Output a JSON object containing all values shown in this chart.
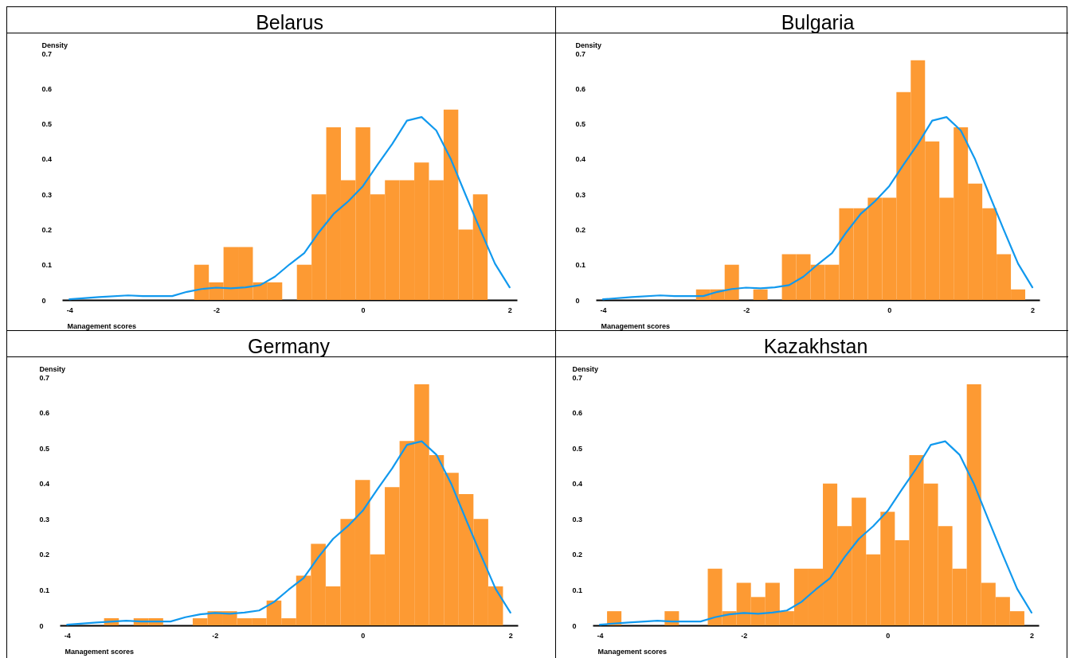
{
  "chart_data": [
    {
      "type": "histogram",
      "title": "Belarus",
      "xlabel": "Management scores",
      "ylabel": "Density",
      "xlim": [
        -4.1,
        2.1
      ],
      "xticks": [
        -4,
        -2,
        0,
        2
      ],
      "ylim": [
        0,
        0.7
      ],
      "yticks": [
        0,
        0.1,
        0.2,
        0.3,
        0.4,
        0.5,
        0.6,
        0.7
      ],
      "series": [
        {
          "color": "#fd9a33",
          "bins": [
            -2.3,
            -2.1,
            -1.9,
            -1.7,
            -1.5,
            -1.3,
            -1.1,
            -0.9,
            -0.7,
            -0.5,
            -0.3,
            -0.1,
            0.1,
            0.3,
            0.5,
            0.7,
            0.9,
            1.1,
            1.3,
            1.5,
            1.7
          ],
          "values": [
            0.1,
            0.05,
            0.15,
            0.15,
            0.05,
            0.05,
            0,
            0.1,
            0.3,
            0.49,
            0.34,
            0.49,
            0.3,
            0.34,
            0.34,
            0.39,
            0.34,
            0.54,
            0.2,
            0.3
          ]
        },
        {
          "type": "line",
          "color": "#1199ee",
          "x": [
            -4,
            -3.6,
            -3.2,
            -3,
            -2.6,
            -2.4,
            -2.2,
            -2,
            -1.8,
            -1.6,
            -1.4,
            -1.2,
            -1,
            -0.8,
            -0.6,
            -0.4,
            -0.2,
            0,
            0.2,
            0.4,
            0.6,
            0.8,
            1,
            1.2,
            1.4,
            1.6,
            1.8,
            2
          ],
          "values": [
            0.002,
            0.008,
            0.013,
            0.011,
            0.011,
            0.023,
            0.031,
            0.035,
            0.033,
            0.036,
            0.042,
            0.066,
            0.101,
            0.133,
            0.192,
            0.244,
            0.28,
            0.323,
            0.384,
            0.443,
            0.509,
            0.519,
            0.481,
            0.399,
            0.298,
            0.199,
            0.103,
            0.036
          ]
        }
      ]
    },
    {
      "type": "histogram",
      "title": "Bulgaria",
      "xlabel": "Management scores",
      "ylabel": "Density",
      "xlim": [
        -4.1,
        2.1
      ],
      "xticks": [
        -4,
        -2,
        0,
        2
      ],
      "ylim": [
        0,
        0.7
      ],
      "yticks": [
        0,
        0.1,
        0.2,
        0.3,
        0.4,
        0.5,
        0.6,
        0.7
      ],
      "series": [
        {
          "color": "#fd9a33",
          "bins": [
            -2.7,
            -2.5,
            -2.3,
            -2.1,
            -1.9,
            -1.7,
            -1.5,
            -1.3,
            -1.1,
            -0.9,
            -0.7,
            -0.5,
            -0.3,
            -0.1,
            0.1,
            0.3,
            0.5,
            0.7,
            0.9,
            1.1,
            1.3,
            1.5,
            1.7,
            1.9
          ],
          "values": [
            0.03,
            0.03,
            0.1,
            0,
            0.03,
            0,
            0.13,
            0.13,
            0.1,
            0.1,
            0.26,
            0.26,
            0.29,
            0.29,
            0.59,
            0.68,
            0.45,
            0.29,
            0.49,
            0.33,
            0.26,
            0.13,
            0.03
          ]
        },
        {
          "type": "line",
          "color": "#1199ee",
          "x": [
            -4,
            -3.6,
            -3.2,
            -3,
            -2.6,
            -2.4,
            -2.2,
            -2,
            -1.8,
            -1.6,
            -1.4,
            -1.2,
            -1,
            -0.8,
            -0.6,
            -0.4,
            -0.2,
            0,
            0.2,
            0.4,
            0.6,
            0.8,
            1,
            1.2,
            1.4,
            1.6,
            1.8,
            2
          ],
          "values": [
            0.002,
            0.008,
            0.013,
            0.011,
            0.011,
            0.023,
            0.031,
            0.035,
            0.033,
            0.036,
            0.042,
            0.066,
            0.101,
            0.133,
            0.192,
            0.244,
            0.28,
            0.323,
            0.384,
            0.443,
            0.509,
            0.519,
            0.481,
            0.399,
            0.298,
            0.199,
            0.103,
            0.036
          ]
        }
      ]
    },
    {
      "type": "histogram",
      "title": "Germany",
      "xlabel": "Management scores",
      "ylabel": "Density",
      "xlim": [
        -4.1,
        2.1
      ],
      "xticks": [
        -4,
        -2,
        0,
        2
      ],
      "ylim": [
        0,
        0.7
      ],
      "yticks": [
        0,
        0.1,
        0.2,
        0.3,
        0.4,
        0.5,
        0.6,
        0.7
      ],
      "series": [
        {
          "color": "#fd9a33",
          "bins": [
            -3.5,
            -3.3,
            -3.1,
            -2.9,
            -2.7,
            -2.5,
            -2.3,
            -2.1,
            -1.9,
            -1.7,
            -1.5,
            -1.3,
            -1.1,
            -0.9,
            -0.7,
            -0.5,
            -0.3,
            -0.1,
            0.1,
            0.3,
            0.5,
            0.7,
            0.9,
            1.1,
            1.3,
            1.5,
            1.7,
            1.9
          ],
          "values": [
            0.02,
            0,
            0.02,
            0.02,
            0,
            0,
            0.02,
            0.04,
            0.04,
            0.02,
            0.02,
            0.07,
            0.02,
            0.14,
            0.23,
            0.11,
            0.3,
            0.41,
            0.2,
            0.39,
            0.52,
            0.68,
            0.48,
            0.43,
            0.37,
            0.3,
            0.11
          ]
        },
        {
          "type": "line",
          "color": "#1199ee",
          "x": [
            -4,
            -3.6,
            -3.2,
            -3,
            -2.6,
            -2.4,
            -2.2,
            -2,
            -1.8,
            -1.6,
            -1.4,
            -1.2,
            -1,
            -0.8,
            -0.6,
            -0.4,
            -0.2,
            0,
            0.2,
            0.4,
            0.6,
            0.8,
            1,
            1.2,
            1.4,
            1.6,
            1.8,
            2
          ],
          "values": [
            0.002,
            0.008,
            0.013,
            0.011,
            0.011,
            0.023,
            0.031,
            0.035,
            0.033,
            0.036,
            0.042,
            0.066,
            0.101,
            0.133,
            0.192,
            0.244,
            0.28,
            0.323,
            0.384,
            0.443,
            0.509,
            0.519,
            0.481,
            0.399,
            0.298,
            0.199,
            0.103,
            0.036
          ]
        }
      ]
    },
    {
      "type": "histogram",
      "title": "Kazakhstan",
      "xlabel": "Management scores",
      "ylabel": "Density",
      "xlim": [
        -4.1,
        2.1
      ],
      "xticks": [
        -4,
        -2,
        0,
        2
      ],
      "ylim": [
        0,
        0.7
      ],
      "yticks": [
        0,
        0.1,
        0.2,
        0.3,
        0.4,
        0.5,
        0.6,
        0.7
      ],
      "series": [
        {
          "color": "#fd9a33",
          "bins": [
            -3.9,
            -3.7,
            -3.5,
            -3.3,
            -3.1,
            -2.9,
            -2.7,
            -2.5,
            -2.3,
            -2.1,
            -1.9,
            -1.7,
            -1.5,
            -1.3,
            -1.1,
            -0.9,
            -0.7,
            -0.5,
            -0.3,
            -0.1,
            0.1,
            0.3,
            0.5,
            0.7,
            0.9,
            1.1,
            1.3,
            1.5,
            1.7,
            1.9
          ],
          "values": [
            0.04,
            0,
            0,
            0,
            0.04,
            0,
            0,
            0.16,
            0.04,
            0.12,
            0.08,
            0.12,
            0.04,
            0.16,
            0.16,
            0.4,
            0.28,
            0.36,
            0.2,
            0.32,
            0.24,
            0.48,
            0.4,
            0.28,
            0.16,
            0.68,
            0.12,
            0.08,
            0.04
          ]
        },
        {
          "type": "line",
          "color": "#1199ee",
          "x": [
            -4,
            -3.6,
            -3.2,
            -3,
            -2.6,
            -2.4,
            -2.2,
            -2,
            -1.8,
            -1.6,
            -1.4,
            -1.2,
            -1,
            -0.8,
            -0.6,
            -0.4,
            -0.2,
            0,
            0.2,
            0.4,
            0.6,
            0.8,
            1,
            1.2,
            1.4,
            1.6,
            1.8,
            2
          ],
          "values": [
            0.002,
            0.008,
            0.013,
            0.011,
            0.011,
            0.023,
            0.031,
            0.035,
            0.033,
            0.036,
            0.042,
            0.066,
            0.101,
            0.133,
            0.192,
            0.244,
            0.28,
            0.323,
            0.384,
            0.443,
            0.509,
            0.519,
            0.481,
            0.399,
            0.298,
            0.199,
            0.103,
            0.036
          ]
        }
      ]
    }
  ]
}
